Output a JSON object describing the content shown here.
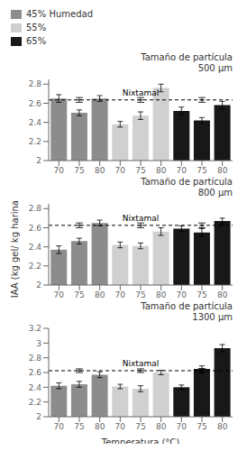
{
  "chart_data": [
    {
      "type": "bar",
      "title": "Tamaño de partícula\n500 μm",
      "categories": [
        "70",
        "75",
        "80",
        "70",
        "75",
        "80",
        "70",
        "75",
        "80"
      ],
      "series": [
        {
          "name": "45% Humedad",
          "color": "#8c8c8c",
          "values": [
            2.65,
            2.5,
            2.65,
            null,
            null,
            null,
            null,
            null,
            null
          ],
          "errors": [
            0.04,
            0.03,
            0.03,
            null,
            null,
            null,
            null,
            null,
            null
          ]
        },
        {
          "name": "55%",
          "color": "#d0d0d0",
          "values": [
            null,
            null,
            null,
            2.38,
            2.47,
            2.76,
            null,
            null,
            null
          ],
          "errors": [
            null,
            null,
            null,
            0.03,
            0.04,
            0.04,
            null,
            null,
            null
          ]
        },
        {
          "name": "65%",
          "color": "#181818",
          "values": [
            null,
            null,
            null,
            null,
            null,
            null,
            2.52,
            2.42,
            2.58
          ],
          "errors": [
            null,
            null,
            null,
            null,
            null,
            null,
            0.04,
            0.03,
            0.04
          ]
        }
      ],
      "reference_line": {
        "label": "Nixtamal",
        "value": 2.635,
        "errors": [
          0.025,
          0.025,
          0.025
        ],
        "line_style": "dashed"
      },
      "ylim": [
        2.0,
        2.85
      ],
      "yticks": [
        2.0,
        2.2,
        2.4,
        2.6,
        2.8
      ],
      "legend": "upper left"
    },
    {
      "type": "bar",
      "title": "Tamaño de partícula\n800 μm",
      "categories": [
        "70",
        "75",
        "80",
        "70",
        "75",
        "80",
        "70",
        "75",
        "80"
      ],
      "series": [
        {
          "name": "45% Humedad",
          "color": "#8c8c8c",
          "values": [
            2.37,
            2.46,
            2.65,
            null,
            null,
            null,
            null,
            null,
            null
          ],
          "errors": [
            0.04,
            0.03,
            0.03,
            null,
            null,
            null,
            null,
            null,
            null
          ]
        },
        {
          "name": "55%",
          "color": "#d0d0d0",
          "values": [
            null,
            null,
            null,
            2.42,
            2.41,
            2.56,
            null,
            null,
            null
          ],
          "errors": [
            null,
            null,
            null,
            0.03,
            0.03,
            0.04,
            null,
            null,
            null
          ]
        },
        {
          "name": "65%",
          "color": "#181818",
          "values": [
            null,
            null,
            null,
            null,
            null,
            null,
            2.59,
            2.55,
            2.67
          ],
          "errors": [
            null,
            null,
            null,
            null,
            null,
            null,
            0.03,
            0.04,
            0.03
          ]
        }
      ],
      "reference_line": {
        "label": "Nixtamal",
        "value": 2.625,
        "errors": [
          0.025,
          0.025,
          0.025
        ],
        "line_style": "dashed"
      },
      "ylabel": "IAA (kg gel/ kg harina",
      "ylim": [
        2.0,
        2.85
      ],
      "yticks": [
        2.0,
        2.2,
        2.4,
        2.6,
        2.8
      ]
    },
    {
      "type": "bar",
      "title": "Tamaño de partícula\n1300 μm",
      "categories": [
        "70",
        "75",
        "80",
        "70",
        "75",
        "80",
        "70",
        "75",
        "80"
      ],
      "series": [
        {
          "name": "45% Humedad",
          "color": "#8c8c8c",
          "values": [
            2.42,
            2.44,
            2.57,
            null,
            null,
            null,
            null,
            null,
            null
          ],
          "errors": [
            0.04,
            0.04,
            0.04,
            null,
            null,
            null,
            null,
            null,
            null
          ]
        },
        {
          "name": "55%",
          "color": "#d0d0d0",
          "values": [
            null,
            null,
            null,
            2.41,
            2.38,
            2.6,
            null,
            null,
            null
          ],
          "errors": [
            null,
            null,
            null,
            0.03,
            0.04,
            0.03,
            null,
            null,
            null
          ]
        },
        {
          "name": "65%",
          "color": "#181818",
          "values": [
            null,
            null,
            null,
            null,
            null,
            null,
            2.4,
            2.65,
            2.93
          ],
          "errors": [
            null,
            null,
            null,
            null,
            null,
            null,
            0.03,
            0.04,
            0.05
          ]
        }
      ],
      "reference_line": {
        "label": "Nixtamal",
        "value": 2.625,
        "errors": [
          0.025,
          0.025,
          0.03
        ],
        "line_style": "dashed"
      },
      "xlabel": "Temperatura (°C)",
      "ylim": [
        2.0,
        3.2
      ],
      "yticks": [
        2.0,
        2.2,
        2.4,
        2.6,
        2.8,
        3.0,
        3.2
      ]
    }
  ]
}
